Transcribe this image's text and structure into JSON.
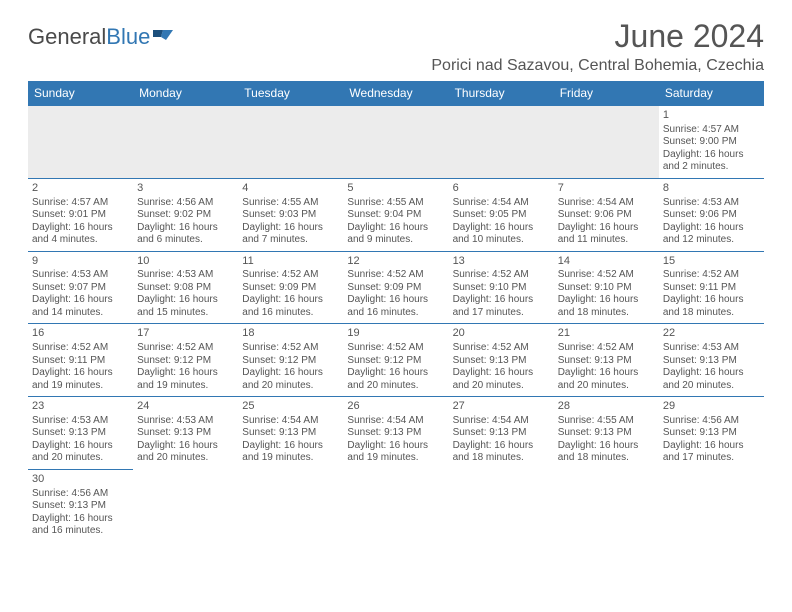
{
  "logo": {
    "text_a": "General",
    "text_b": "Blue"
  },
  "title": "June 2024",
  "location": "Porici nad Sazavou, Central Bohemia, Czechia",
  "colors": {
    "header_bg": "#3277b3",
    "header_text": "#ffffff",
    "body_text": "#555555",
    "blank_bg": "#ececec",
    "cell_border": "#3277b3"
  },
  "weekdays": [
    "Sunday",
    "Monday",
    "Tuesday",
    "Wednesday",
    "Thursday",
    "Friday",
    "Saturday"
  ],
  "weeks": [
    [
      null,
      null,
      null,
      null,
      null,
      null,
      {
        "d": "1",
        "sr": "4:57 AM",
        "ss": "9:00 PM",
        "dl": "16 hours and 2 minutes."
      }
    ],
    [
      {
        "d": "2",
        "sr": "4:57 AM",
        "ss": "9:01 PM",
        "dl": "16 hours and 4 minutes."
      },
      {
        "d": "3",
        "sr": "4:56 AM",
        "ss": "9:02 PM",
        "dl": "16 hours and 6 minutes."
      },
      {
        "d": "4",
        "sr": "4:55 AM",
        "ss": "9:03 PM",
        "dl": "16 hours and 7 minutes."
      },
      {
        "d": "5",
        "sr": "4:55 AM",
        "ss": "9:04 PM",
        "dl": "16 hours and 9 minutes."
      },
      {
        "d": "6",
        "sr": "4:54 AM",
        "ss": "9:05 PM",
        "dl": "16 hours and 10 minutes."
      },
      {
        "d": "7",
        "sr": "4:54 AM",
        "ss": "9:06 PM",
        "dl": "16 hours and 11 minutes."
      },
      {
        "d": "8",
        "sr": "4:53 AM",
        "ss": "9:06 PM",
        "dl": "16 hours and 12 minutes."
      }
    ],
    [
      {
        "d": "9",
        "sr": "4:53 AM",
        "ss": "9:07 PM",
        "dl": "16 hours and 14 minutes."
      },
      {
        "d": "10",
        "sr": "4:53 AM",
        "ss": "9:08 PM",
        "dl": "16 hours and 15 minutes."
      },
      {
        "d": "11",
        "sr": "4:52 AM",
        "ss": "9:09 PM",
        "dl": "16 hours and 16 minutes."
      },
      {
        "d": "12",
        "sr": "4:52 AM",
        "ss": "9:09 PM",
        "dl": "16 hours and 16 minutes."
      },
      {
        "d": "13",
        "sr": "4:52 AM",
        "ss": "9:10 PM",
        "dl": "16 hours and 17 minutes."
      },
      {
        "d": "14",
        "sr": "4:52 AM",
        "ss": "9:10 PM",
        "dl": "16 hours and 18 minutes."
      },
      {
        "d": "15",
        "sr": "4:52 AM",
        "ss": "9:11 PM",
        "dl": "16 hours and 18 minutes."
      }
    ],
    [
      {
        "d": "16",
        "sr": "4:52 AM",
        "ss": "9:11 PM",
        "dl": "16 hours and 19 minutes."
      },
      {
        "d": "17",
        "sr": "4:52 AM",
        "ss": "9:12 PM",
        "dl": "16 hours and 19 minutes."
      },
      {
        "d": "18",
        "sr": "4:52 AM",
        "ss": "9:12 PM",
        "dl": "16 hours and 20 minutes."
      },
      {
        "d": "19",
        "sr": "4:52 AM",
        "ss": "9:12 PM",
        "dl": "16 hours and 20 minutes."
      },
      {
        "d": "20",
        "sr": "4:52 AM",
        "ss": "9:13 PM",
        "dl": "16 hours and 20 minutes."
      },
      {
        "d": "21",
        "sr": "4:52 AM",
        "ss": "9:13 PM",
        "dl": "16 hours and 20 minutes."
      },
      {
        "d": "22",
        "sr": "4:53 AM",
        "ss": "9:13 PM",
        "dl": "16 hours and 20 minutes."
      }
    ],
    [
      {
        "d": "23",
        "sr": "4:53 AM",
        "ss": "9:13 PM",
        "dl": "16 hours and 20 minutes."
      },
      {
        "d": "24",
        "sr": "4:53 AM",
        "ss": "9:13 PM",
        "dl": "16 hours and 20 minutes."
      },
      {
        "d": "25",
        "sr": "4:54 AM",
        "ss": "9:13 PM",
        "dl": "16 hours and 19 minutes."
      },
      {
        "d": "26",
        "sr": "4:54 AM",
        "ss": "9:13 PM",
        "dl": "16 hours and 19 minutes."
      },
      {
        "d": "27",
        "sr": "4:54 AM",
        "ss": "9:13 PM",
        "dl": "16 hours and 18 minutes."
      },
      {
        "d": "28",
        "sr": "4:55 AM",
        "ss": "9:13 PM",
        "dl": "16 hours and 18 minutes."
      },
      {
        "d": "29",
        "sr": "4:56 AM",
        "ss": "9:13 PM",
        "dl": "16 hours and 17 minutes."
      }
    ],
    [
      {
        "d": "30",
        "sr": "4:56 AM",
        "ss": "9:13 PM",
        "dl": "16 hours and 16 minutes."
      },
      null,
      null,
      null,
      null,
      null,
      null
    ]
  ],
  "labels": {
    "sunrise": "Sunrise:",
    "sunset": "Sunset:",
    "daylight": "Daylight:"
  }
}
